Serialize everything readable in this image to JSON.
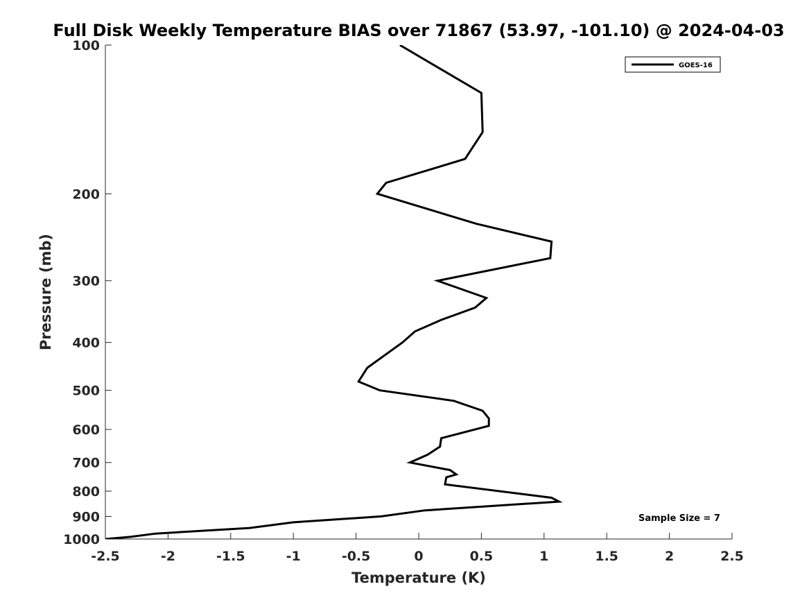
{
  "chart_data": {
    "type": "line",
    "title": "Full Disk Weekly Temperature BIAS over 71867 (53.97, -101.10) @ 2024-04-03",
    "xlabel": "Temperature (K)",
    "ylabel": "Pressure (mb)",
    "xlim": [
      -2.5,
      2.5
    ],
    "ylim": [
      100,
      1000
    ],
    "y_scale": "log",
    "y_reversed": true,
    "grid": false,
    "legend_position": "top-right",
    "x_ticks": [
      -2.5,
      -2,
      -1.5,
      -1,
      -0.5,
      0,
      0.5,
      1,
      1.5,
      2,
      2.5
    ],
    "x_tick_labels": [
      "-2.5",
      "-2",
      "-1.5",
      "-1",
      "-0.5",
      "0",
      "0.5",
      "1",
      "1.5",
      "2",
      "2.5"
    ],
    "y_ticks": [
      100,
      200,
      300,
      400,
      500,
      600,
      700,
      800,
      900,
      1000
    ],
    "y_tick_labels": [
      "100",
      "200",
      "300",
      "400",
      "500",
      "600",
      "700",
      "800",
      "900",
      "1000"
    ],
    "series": [
      {
        "name": "GOES-16",
        "color": "#000000",
        "points": [
          {
            "x": -0.15,
            "y": 100
          },
          {
            "x": 0.5,
            "y": 125
          },
          {
            "x": 0.51,
            "y": 150
          },
          {
            "x": 0.37,
            "y": 170
          },
          {
            "x": -0.26,
            "y": 190
          },
          {
            "x": -0.33,
            "y": 200
          },
          {
            "x": 0.46,
            "y": 230
          },
          {
            "x": 1.06,
            "y": 250
          },
          {
            "x": 1.05,
            "y": 270
          },
          {
            "x": 0.15,
            "y": 300
          },
          {
            "x": 0.54,
            "y": 325
          },
          {
            "x": 0.45,
            "y": 340
          },
          {
            "x": 0.18,
            "y": 360
          },
          {
            "x": -0.03,
            "y": 380
          },
          {
            "x": -0.13,
            "y": 400
          },
          {
            "x": -0.41,
            "y": 450
          },
          {
            "x": -0.48,
            "y": 480
          },
          {
            "x": -0.31,
            "y": 500
          },
          {
            "x": 0.28,
            "y": 525
          },
          {
            "x": 0.51,
            "y": 550
          },
          {
            "x": 0.56,
            "y": 570
          },
          {
            "x": 0.56,
            "y": 590
          },
          {
            "x": 0.18,
            "y": 625
          },
          {
            "x": 0.17,
            "y": 650
          },
          {
            "x": 0.07,
            "y": 675
          },
          {
            "x": -0.07,
            "y": 700
          },
          {
            "x": 0.25,
            "y": 725
          },
          {
            "x": 0.3,
            "y": 740
          },
          {
            "x": 0.22,
            "y": 750
          },
          {
            "x": 0.21,
            "y": 775
          },
          {
            "x": 1.06,
            "y": 825
          },
          {
            "x": 1.12,
            "y": 840
          },
          {
            "x": 0.05,
            "y": 875
          },
          {
            "x": -0.3,
            "y": 900
          },
          {
            "x": -1.0,
            "y": 925
          },
          {
            "x": -1.35,
            "y": 950
          },
          {
            "x": -2.1,
            "y": 975
          },
          {
            "x": -2.3,
            "y": 990
          },
          {
            "x": -2.5,
            "y": 1000
          }
        ]
      }
    ],
    "annotation": "Sample Size = 7"
  }
}
